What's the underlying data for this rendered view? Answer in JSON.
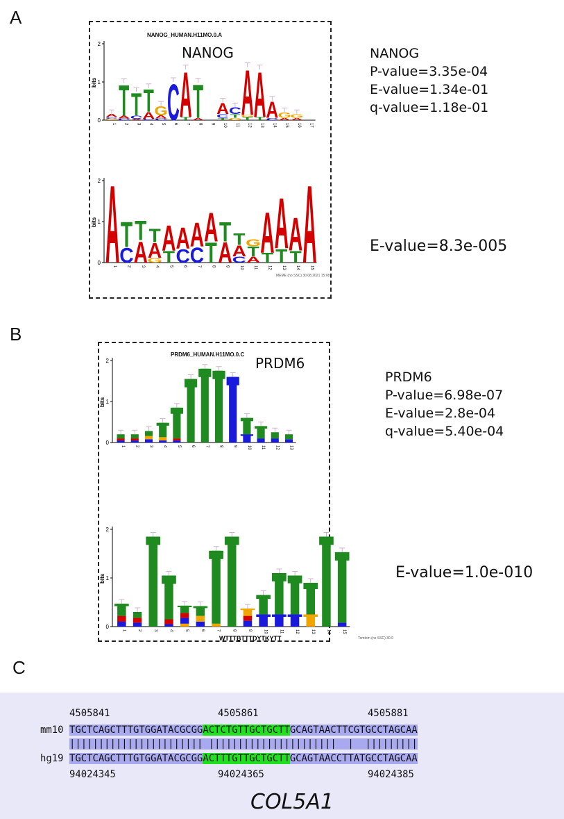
{
  "panelA": {
    "label": "A",
    "motif_title": "NANOG_HUMAN.H11MO.0.A",
    "tf_name": "NANOG",
    "stats": [
      "NANOG",
      "P-value=3.35e-04",
      "E-value=1.34e-01",
      "q-value=1.18e-01"
    ],
    "query_evalue": "E-value=8.3e-005",
    "axis_label": "bits",
    "ticks": [
      "0",
      "1",
      "2"
    ],
    "top_positions": [
      "1",
      "2",
      "3",
      "4",
      "5",
      "6",
      "7",
      "8",
      "9",
      "10",
      "11",
      "12",
      "13",
      "14",
      "15",
      "16",
      "17"
    ],
    "bottom_positions": [
      "1",
      "2",
      "3",
      "4",
      "5",
      "6",
      "7",
      "8",
      "9",
      "10",
      "11",
      "12",
      "13",
      "14",
      "15"
    ],
    "credit": "MEME (no SSC) 30.08.2021 15:08"
  },
  "panelB": {
    "label": "B",
    "motif_title": "PRDM6_HUMAN.H11MO.0.C",
    "tf_name": "PRDM6",
    "stats": [
      "PRDM6",
      "P-value=6.98e-07",
      "E-value=2.8e-04",
      "q-value=5.40e-04"
    ],
    "query_evalue": "E-value=1.0e-010",
    "axis_label": "bits",
    "ticks": [
      "0",
      "1",
      "2"
    ],
    "top_positions": [
      "1",
      "2",
      "3",
      "4",
      "5",
      "6",
      "7",
      "8",
      "9",
      "10",
      "11",
      "12",
      "13"
    ],
    "bottom_positions": [
      "1",
      "2",
      "3",
      "4",
      "5",
      "6",
      "7",
      "8",
      "9",
      "10",
      "11",
      "12",
      "13",
      "14",
      "15"
    ],
    "consensus": "WTTTBTTTDYTKYTT",
    "credit": "Tomtom (no SSC) 30.0"
  },
  "panelC": {
    "label": "C",
    "mm10": {
      "label": "mm10",
      "coords": [
        "4505841",
        "4505861",
        "4505881"
      ],
      "seq_pre": "TGCTCAGCTTTGTGGATACGCGG",
      "seq_hl": "ACTCTGTTGCTGCTT",
      "seq_post": "GCAGTAACTTCGTGCCTAGCAA"
    },
    "match_line": "||||||||||||||||||||||| ||||||||||||||||||||||  |  |||||||||",
    "hg19": {
      "label": "hg19",
      "coords": [
        "94024345",
        "94024365",
        "94024385"
      ],
      "seq_pre": "TGCTCAGCTTTGTGGATACGCGG",
      "seq_hl": "ACTTTGTTGCTGCTT",
      "seq_post": "GCAGTAACCTTATGCCTAGCAA"
    },
    "gene": "COL5A1"
  },
  "colors": {
    "A": "#d40000",
    "C": "#1a1adc",
    "G": "#f0a500",
    "T": "#1f8a1f",
    "align_bg": "#e8e8f8",
    "align_hl": "#a9a9f0",
    "motif_hl": "#20e020"
  },
  "logos": {
    "nanog_db": [
      [
        [
          "G",
          0.04
        ],
        [
          "C",
          0.04
        ],
        [
          "A",
          0.08
        ]
      ],
      [
        [
          "C",
          0.05
        ],
        [
          "A",
          0.07
        ],
        [
          "T",
          0.85
        ]
      ],
      [
        [
          "A",
          0.04
        ],
        [
          "C",
          0.08
        ],
        [
          "T",
          0.62
        ]
      ],
      [
        [
          "C",
          0.04
        ],
        [
          "A",
          0.18
        ],
        [
          "T",
          0.62
        ]
      ],
      [
        [
          "C",
          0.05
        ],
        [
          "A",
          0.08
        ],
        [
          "G",
          0.25
        ]
      ],
      [
        [
          "C",
          1.0
        ]
      ],
      [
        [
          "T",
          0.08
        ],
        [
          "A",
          1.25
        ]
      ],
      [
        [
          "A",
          0.06
        ],
        [
          "T",
          0.92
        ]
      ],
      [],
      [
        [
          "T",
          0.06
        ],
        [
          "C",
          0.1
        ],
        [
          "A",
          0.3
        ]
      ],
      [
        [
          "G",
          0.06
        ],
        [
          "T",
          0.1
        ],
        [
          "C",
          0.18
        ]
      ],
      [
        [
          "T",
          0.08
        ],
        [
          "G",
          0.06
        ],
        [
          "A",
          1.25
        ]
      ],
      [
        [
          "T",
          0.08
        ],
        [
          "A",
          1.25
        ]
      ],
      [
        [
          "C",
          0.06
        ],
        [
          "A",
          0.45
        ]
      ],
      [
        [
          "A",
          0.06
        ],
        [
          "G",
          0.15
        ]
      ],
      [
        [
          "A",
          0.06
        ],
        [
          "G",
          0.1
        ]
      ],
      []
    ],
    "nanog_query": [
      [
        [
          "A",
          2.0
        ]
      ],
      [
        [
          "C",
          0.38
        ],
        [
          "T",
          0.65
        ]
      ],
      [
        [
          "A",
          0.55
        ],
        [
          "T",
          0.5
        ]
      ],
      [
        [
          "G",
          0.12
        ],
        [
          "A",
          0.38
        ],
        [
          "T",
          0.35
        ]
      ],
      [
        [
          "T",
          0.3
        ],
        [
          "A",
          0.65
        ]
      ],
      [
        [
          "C",
          0.35
        ],
        [
          "A",
          0.55
        ]
      ],
      [
        [
          "C",
          0.4
        ],
        [
          "A",
          0.62
        ]
      ],
      [
        [
          "T",
          0.52
        ],
        [
          "A",
          0.75
        ]
      ],
      [
        [
          "A",
          0.52
        ],
        [
          "T",
          0.5
        ]
      ],
      [
        [
          "C",
          0.15
        ],
        [
          "A",
          0.28
        ],
        [
          "T",
          0.3
        ]
      ],
      [
        [
          "A",
          0.15
        ],
        [
          "T",
          0.25
        ],
        [
          "G",
          0.18
        ]
      ],
      [
        [
          "T",
          0.25
        ],
        [
          "A",
          1.05
        ]
      ],
      [
        [
          "T",
          0.35
        ],
        [
          "A",
          1.3
        ]
      ],
      [
        [
          "T",
          0.3
        ],
        [
          "A",
          0.85
        ]
      ],
      [
        [
          "A",
          2.0
        ]
      ]
    ],
    "prdm6_db": [
      [
        [
          "C",
          0.05
        ],
        [
          "A",
          0.05
        ],
        [
          "T",
          0.1
        ]
      ],
      [
        [
          "C",
          0.05
        ],
        [
          "A",
          0.05
        ],
        [
          "T",
          0.1
        ]
      ],
      [
        [
          "C",
          0.08
        ],
        [
          "G",
          0.08
        ],
        [
          "T",
          0.12
        ]
      ],
      [
        [
          "C",
          0.05
        ],
        [
          "G",
          0.08
        ],
        [
          "T",
          0.35
        ]
      ],
      [
        [
          "C",
          0.05
        ],
        [
          "A",
          0.05
        ],
        [
          "T",
          0.75
        ]
      ],
      [
        [
          "T",
          1.55
        ]
      ],
      [
        [
          "T",
          1.8
        ]
      ],
      [
        [
          "T",
          1.75
        ]
      ],
      [
        [
          "C",
          1.6
        ]
      ],
      [
        [
          "C",
          0.2
        ],
        [
          "T",
          0.4
        ]
      ],
      [
        [
          "C",
          0.1
        ],
        [
          "T",
          0.3
        ]
      ],
      [
        [
          "C",
          0.1
        ],
        [
          "T",
          0.15
        ]
      ],
      [
        [
          "C",
          0.08
        ],
        [
          "T",
          0.12
        ]
      ]
    ],
    "prdm6_query": [
      [
        [
          "C",
          0.1
        ],
        [
          "A",
          0.12
        ],
        [
          "T",
          0.25
        ]
      ],
      [
        [
          "C",
          0.08
        ],
        [
          "A",
          0.1
        ],
        [
          "T",
          0.12
        ]
      ],
      [
        [
          "T",
          1.85
        ]
      ],
      [
        [
          "C",
          0.05
        ],
        [
          "A",
          0.1
        ],
        [
          "T",
          0.9
        ]
      ],
      [
        [
          "G",
          0.06
        ],
        [
          "C",
          0.12
        ],
        [
          "A",
          0.1
        ],
        [
          "T",
          0.15
        ]
      ],
      [
        [
          "C",
          0.1
        ],
        [
          "G",
          0.12
        ],
        [
          "T",
          0.2
        ]
      ],
      [
        [
          "G",
          0.06
        ],
        [
          "T",
          1.5
        ]
      ],
      [
        [
          "T",
          1.85
        ]
      ],
      [
        [
          "C",
          0.12
        ],
        [
          "A",
          0.1
        ],
        [
          "G",
          0.15
        ]
      ],
      [
        [
          "C",
          0.25
        ],
        [
          "T",
          0.4
        ]
      ],
      [
        [
          "C",
          0.25
        ],
        [
          "T",
          0.85
        ]
      ],
      [
        [
          "C",
          0.25
        ],
        [
          "T",
          0.8
        ]
      ],
      [
        [
          "G",
          0.25
        ],
        [
          "T",
          0.65
        ]
      ],
      [
        [
          "T",
          1.85
        ]
      ],
      [
        [
          "C",
          0.08
        ],
        [
          "T",
          1.45
        ]
      ]
    ]
  }
}
